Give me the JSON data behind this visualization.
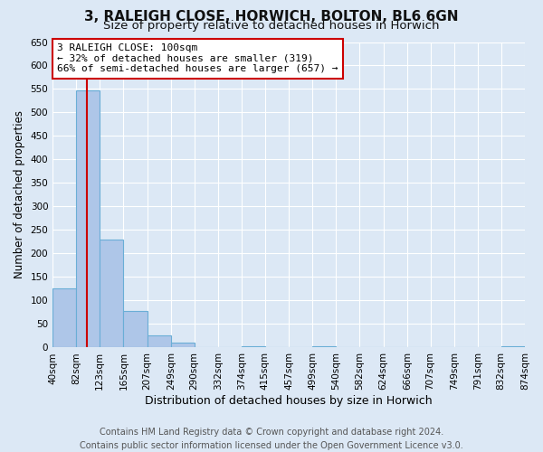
{
  "title": "3, RALEIGH CLOSE, HORWICH, BOLTON, BL6 6GN",
  "subtitle": "Size of property relative to detached houses in Horwich",
  "xlabel": "Distribution of detached houses by size in Horwich",
  "ylabel": "Number of detached properties",
  "bin_edges": [
    40,
    82,
    123,
    165,
    207,
    249,
    290,
    332,
    374,
    415,
    457,
    499,
    540,
    582,
    624,
    666,
    707,
    749,
    791,
    832,
    874
  ],
  "bin_labels": [
    "40sqm",
    "82sqm",
    "123sqm",
    "165sqm",
    "207sqm",
    "249sqm",
    "290sqm",
    "332sqm",
    "374sqm",
    "415sqm",
    "457sqm",
    "499sqm",
    "540sqm",
    "582sqm",
    "624sqm",
    "666sqm",
    "707sqm",
    "749sqm",
    "791sqm",
    "832sqm",
    "874sqm"
  ],
  "bar_heights": [
    125,
    547,
    230,
    78,
    25,
    10,
    0,
    0,
    3,
    0,
    0,
    3,
    0,
    0,
    0,
    0,
    0,
    0,
    0,
    3
  ],
  "bar_color": "#aec6e8",
  "bar_edgecolor": "#6aaed6",
  "bar_linewidth": 0.8,
  "vline_x": 100,
  "vline_color": "#cc0000",
  "vline_linewidth": 1.5,
  "ylim": [
    0,
    650
  ],
  "yticks": [
    0,
    50,
    100,
    150,
    200,
    250,
    300,
    350,
    400,
    450,
    500,
    550,
    600,
    650
  ],
  "background_color": "#dce8f5",
  "plot_bg_color": "#dce8f5",
  "grid_color": "#ffffff",
  "annotation_text": "3 RALEIGH CLOSE: 100sqm\n← 32% of detached houses are smaller (319)\n66% of semi-detached houses are larger (657) →",
  "annotation_box_edgecolor": "#cc0000",
  "annotation_box_facecolor": "#ffffff",
  "footer_line1": "Contains HM Land Registry data © Crown copyright and database right 2024.",
  "footer_line2": "Contains public sector information licensed under the Open Government Licence v3.0.",
  "title_fontsize": 11,
  "subtitle_fontsize": 9.5,
  "xlabel_fontsize": 9,
  "ylabel_fontsize": 8.5,
  "tick_fontsize": 7.5,
  "annotation_fontsize": 8,
  "footer_fontsize": 7
}
